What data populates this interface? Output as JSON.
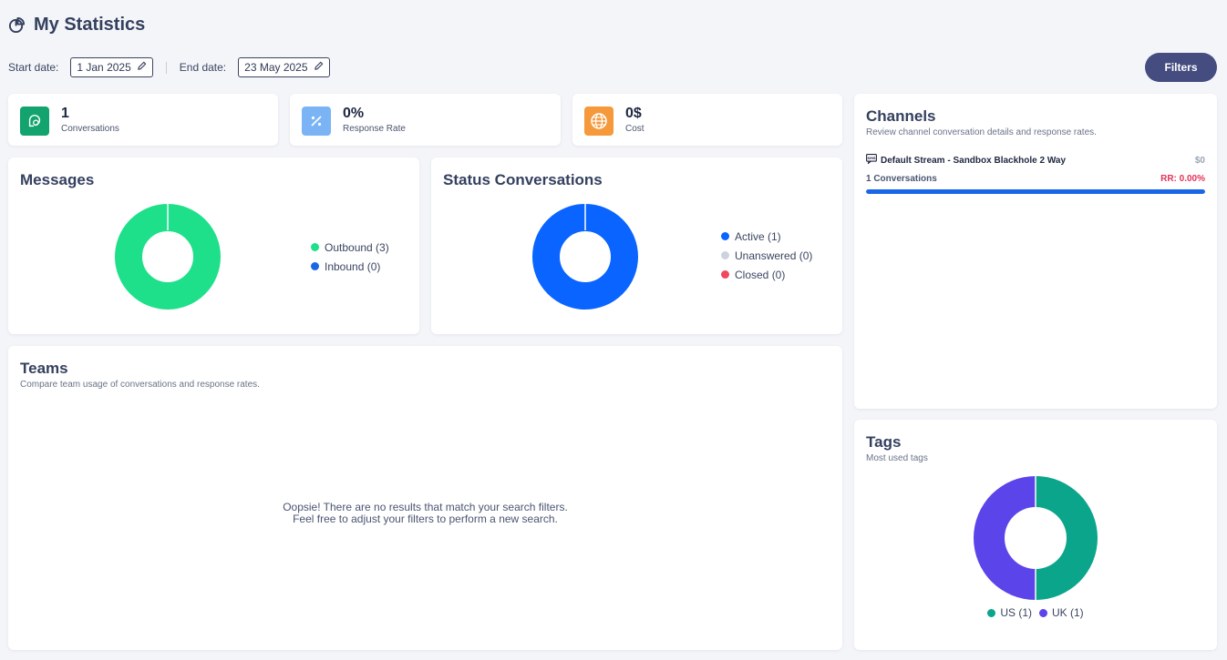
{
  "page": {
    "title": "My Statistics",
    "title_icon": "pie-chart-icon"
  },
  "dates": {
    "start_label": "Start date:",
    "start_value": "1 Jan 2025",
    "end_label": "End date:",
    "end_value": "23 May 2025"
  },
  "filters_button": "Filters",
  "stats": [
    {
      "value": "1",
      "label": "Conversations",
      "icon": "chat-icon",
      "color": "#12a36e"
    },
    {
      "value": "0%",
      "label": "Response Rate",
      "icon": "percent-icon",
      "color": "#7ab4f5"
    },
    {
      "value": "0$",
      "label": "Cost",
      "icon": "globe-icon",
      "color": "#f5993b"
    }
  ],
  "messages": {
    "title": "Messages",
    "legend": [
      {
        "label": "Outbound (3)",
        "color": "#1ee08a"
      },
      {
        "label": "Inbound (0)",
        "color": "#1967e6"
      }
    ]
  },
  "status": {
    "title": "Status Conversations",
    "legend": [
      {
        "label": "Active (1)",
        "color": "#0a64ff"
      },
      {
        "label": "Unanswered (0)",
        "color": "#cdd3dd"
      },
      {
        "label": "Closed (0)",
        "color": "#f0475e"
      }
    ]
  },
  "teams": {
    "title": "Teams",
    "subtitle": "Compare team usage of conversations and response rates.",
    "empty_line1": "Oopsie! There are no results that match your search filters.",
    "empty_line2": "Feel free to adjust your filters to perform a new search."
  },
  "channels": {
    "title": "Channels",
    "subtitle": "Review channel conversation details and response rates.",
    "items": [
      {
        "name": "Default Stream - Sandbox Blackhole 2 Way",
        "cost": "$0",
        "conversations": "1 Conversations",
        "rr": "RR: 0.00%",
        "icon": "sms-icon",
        "fill_fraction": 1.0
      }
    ]
  },
  "tags": {
    "title": "Tags",
    "subtitle": "Most used tags",
    "legend": [
      {
        "label": "US (1)",
        "color": "#0aa58a"
      },
      {
        "label": "UK (1)",
        "color": "#5b45ea"
      }
    ]
  }
}
